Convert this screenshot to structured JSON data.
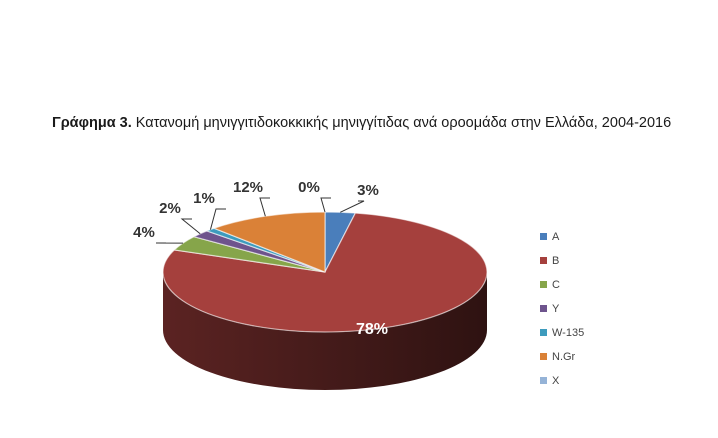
{
  "caption": {
    "label": "Γράφημα 3.",
    "text": " Κατανομή μηνιγγιτιδοκοκκικής μηνιγγίτιδας ανά οροομάδα στην Ελλάδα, 2004-2016"
  },
  "chart_data": {
    "type": "pie",
    "title": "",
    "categories": [
      "A",
      "B",
      "C",
      "Y",
      "W-135",
      "N.Gr",
      "X"
    ],
    "values": [
      3,
      78,
      4,
      2,
      1,
      12,
      0
    ],
    "labels": [
      "3%",
      "78%",
      "4%",
      "2%",
      "1%",
      "12%",
      "0%"
    ],
    "colors": [
      "#4a7ebb",
      "#a5403d",
      "#86a54a",
      "#6e548d",
      "#3d9bbd",
      "#da8137",
      "#95b3d7"
    ],
    "style": "3d",
    "legend": "right"
  }
}
